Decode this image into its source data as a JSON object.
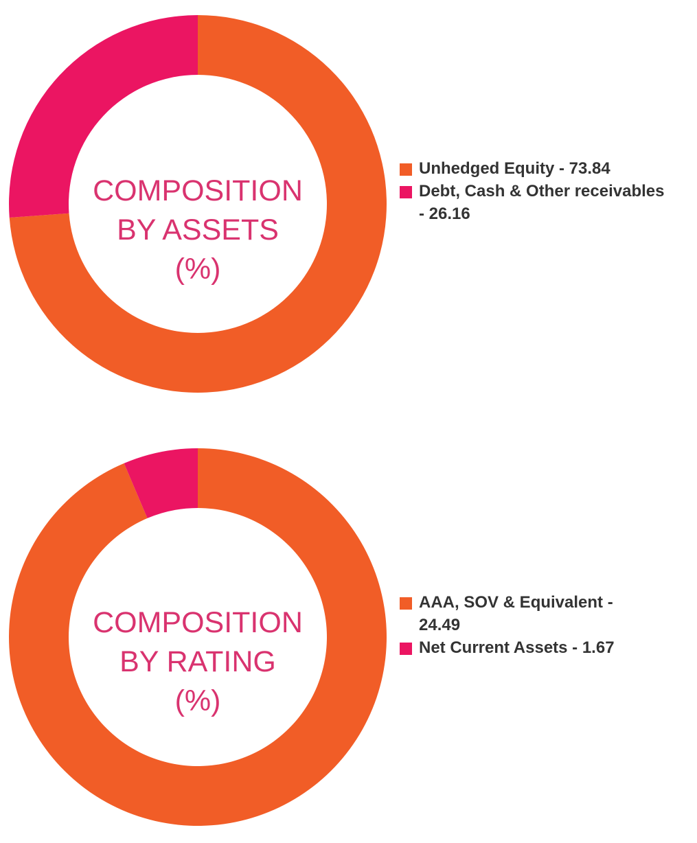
{
  "colors": {
    "orange": "#f15d27",
    "pink": "#eb1562",
    "center_text": "#d9336f",
    "legend_text": "#333333"
  },
  "chart_data": [
    {
      "type": "pie",
      "subtype": "donut",
      "title_lines": [
        "COMPOSITION",
        "BY ASSETS",
        "(%)"
      ],
      "series": [
        {
          "name": "Unhedged Equity",
          "value": 73.84,
          "color": "#f15d27"
        },
        {
          "name": "Debt, Cash & Other receivables",
          "value": 26.16,
          "color": "#eb1562"
        }
      ],
      "legend": {
        "placement": "right",
        "items": [
          {
            "lines": [
              "Unhedged Equity - 73.84"
            ],
            "color": "#f15d27"
          },
          {
            "lines": [
              "Debt, Cash & Other receivables",
              "- 26.16"
            ],
            "color": "#eb1562"
          }
        ]
      }
    },
    {
      "type": "pie",
      "subtype": "donut",
      "title_lines": [
        "COMPOSITION",
        "BY RATING",
        "(%)"
      ],
      "series": [
        {
          "name": "AAA, SOV & Equivalent",
          "value": 24.49,
          "color": "#f15d27"
        },
        {
          "name": "Net Current Assets",
          "value": 1.67,
          "color": "#eb1562"
        }
      ],
      "legend": {
        "placement": "right",
        "items": [
          {
            "lines": [
              "AAA, SOV & Equivalent -",
              "24.49"
            ],
            "color": "#f15d27"
          },
          {
            "lines": [
              "Net Current Assets - 1.67"
            ],
            "color": "#eb1562"
          }
        ]
      }
    }
  ]
}
